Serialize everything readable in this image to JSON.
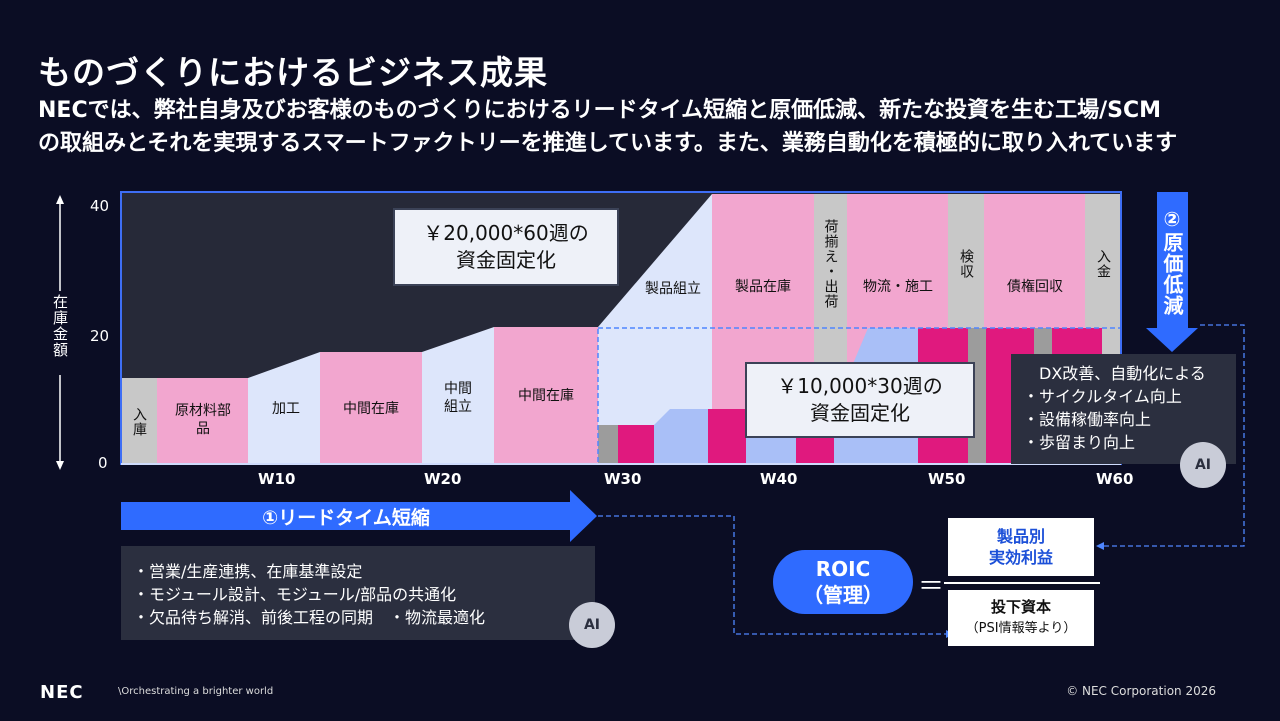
{
  "title": "ものづくりにおけるビジネス成果",
  "subtitle_lines": [
    "NECでは、弊社自身及びお客様のものづくりにおけるリードタイム短縮と原価低減、新たな投資を生む工場/SCM",
    "の取組みとそれを実現するスマートファクトリーを推進しています。また、業務自動化を積極的に取り入れています"
  ],
  "y_axis": {
    "label": "在庫金額",
    "ticks": [
      "40",
      "20",
      "0"
    ]
  },
  "x_axis": {
    "ticks": [
      "W10",
      "W20",
      "W30",
      "W40",
      "W50",
      "W60"
    ]
  },
  "segments_before": {
    "nyuko": "入庫",
    "genzairyo": "原材料部品",
    "kako": "加工",
    "chukan1": "中間在庫",
    "chukan_kumitate": "中間組立",
    "chukan2": "中間在庫",
    "seihin_kumitate": "製品組立",
    "seihin_zaiko": "製品在庫",
    "niso": "荷揃え・出荷",
    "butsuryu": "物流・施工",
    "kenshu": "検収",
    "saiken": "債権回収",
    "nyukin": "入金"
  },
  "callout_before": {
    "line1": "￥20,000*60週の",
    "line2": "資金固定化"
  },
  "callout_after": {
    "line1": "￥10,000*30週の",
    "line2": "資金固定化"
  },
  "lead_time_arrow": "①リードタイム短縮",
  "cost_arrow": "②原価低減",
  "left_measures": [
    "・営業/生産連携、在庫基準設定",
    "・モジュール設計、モジュール/部品の共通化",
    "・欠品待ち解消、前後工程の同期　・物流最適化"
  ],
  "right_measures": {
    "heading": "DX改善、自動化による",
    "items": [
      "・サイクルタイム向上",
      "・設備稼働率向上",
      "・歩留まり向上"
    ]
  },
  "ai_badge": "AI",
  "roic": {
    "label_line1": "ROIC",
    "label_line2": "（管理）",
    "equals": "＝",
    "numerator_line1": "製品別",
    "numerator_line2": "実効利益",
    "denominator_line1": "投下資本",
    "denominator_line2": "（PSI情報等より）"
  },
  "footer": {
    "logo": "NEC",
    "tagline": "\\Orchestrating a brighter world",
    "copyright": "© NEC Corporation 2026"
  },
  "colors": {
    "background": "#0b0d24",
    "pink": "#f2a6cf",
    "magenta": "#e0197e",
    "light_blue": "#dde6fb",
    "mid_blue": "#a9bff7",
    "gray": "#c8c8c8",
    "accent_blue": "#2f6bff"
  }
}
